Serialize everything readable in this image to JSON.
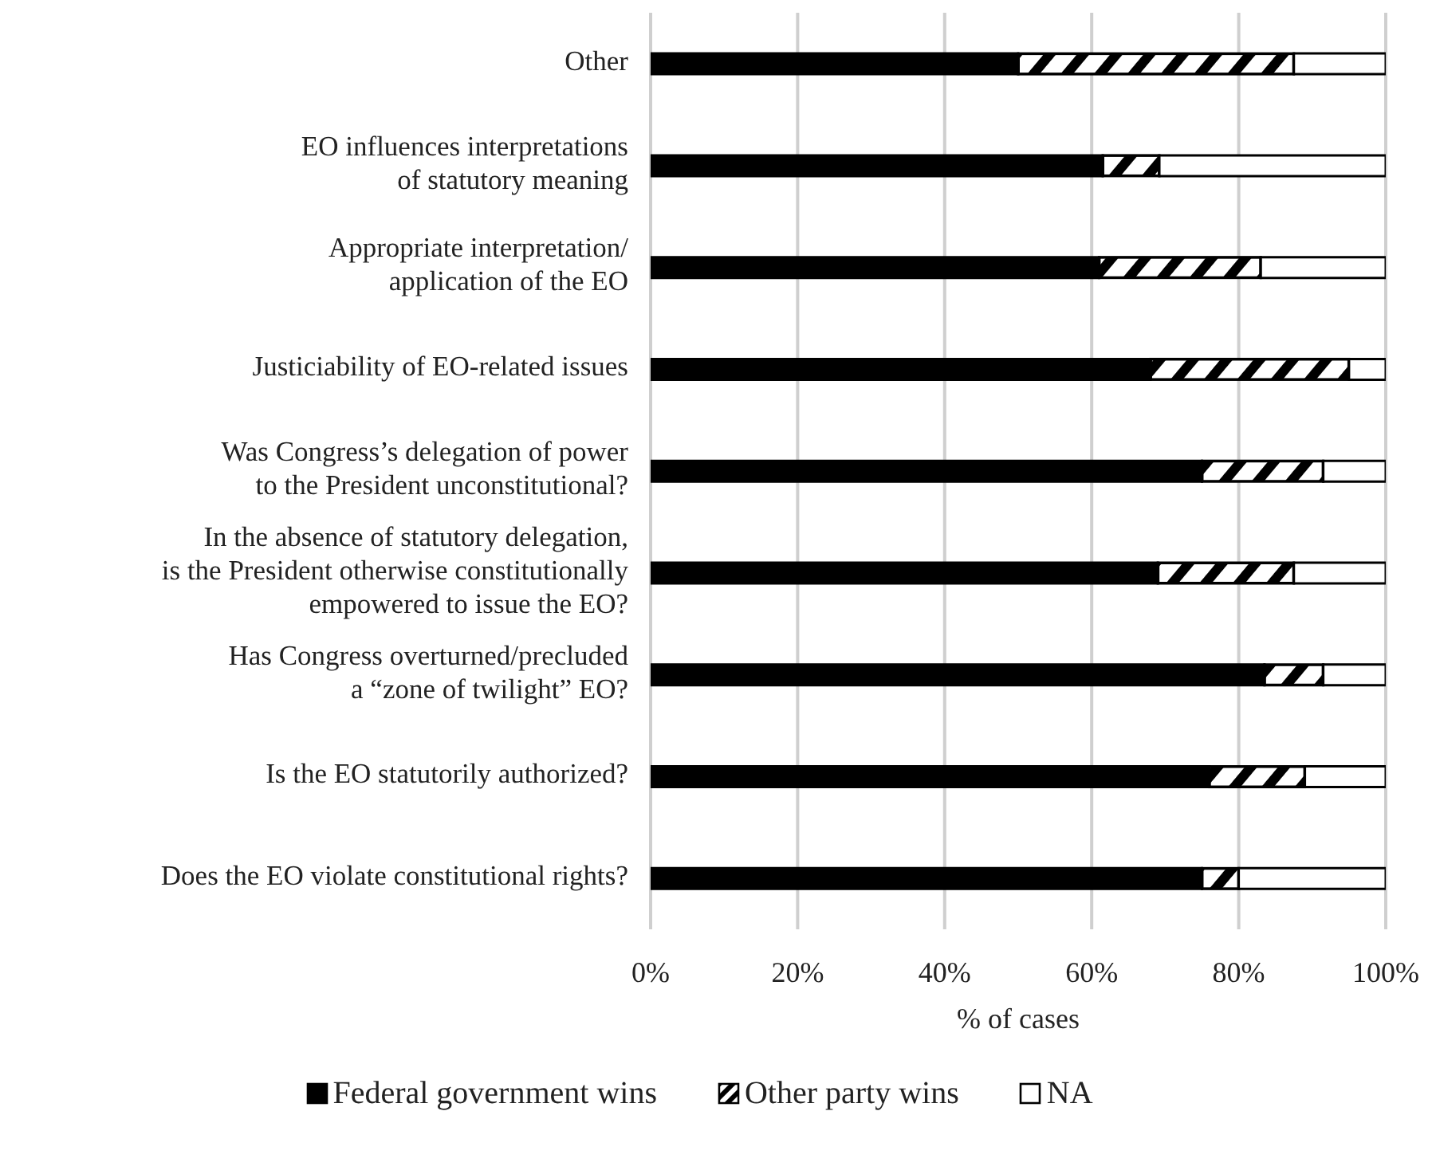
{
  "chart_data": {
    "type": "bar",
    "orientation": "horizontal",
    "stacked": true,
    "xlabel": "% of cases",
    "categories": [
      "Other",
      "EO influences interpretations\nof statutory meaning",
      "Appropriate interpretation/\napplication of the EO",
      "Justiciability of EO-related issues",
      "Was Congress’s delegation of power\nto the President unconstitutional?",
      "In the absence of statutory delegation,\nis the President otherwise constitutionally\nempowered to issue the EO?",
      "Has Congress overturned/precluded\na “zone of twilight” EO?",
      "Is the EO statutorily authorized?",
      "Does the EO violate constitutional rights?"
    ],
    "series": [
      {
        "name": "Federal government wins",
        "color": "#000000",
        "values": [
          50,
          61.5,
          61,
          68,
          75,
          69,
          83.5,
          76,
          75
        ]
      },
      {
        "name": "Other party wins",
        "color": "#000000",
        "values": [
          37.5,
          7.7,
          22,
          27,
          16.5,
          18.5,
          8,
          13,
          5
        ]
      },
      {
        "name": "NA",
        "color": "#ffffff",
        "values": [
          12.5,
          30.8,
          17,
          5,
          8.5,
          12.5,
          8.5,
          11,
          20
        ]
      }
    ],
    "xlim": [
      0,
      100
    ],
    "xticks": [
      {
        "value": 0,
        "label": "0%"
      },
      {
        "value": 20,
        "label": "20%"
      },
      {
        "value": 40,
        "label": "40%"
      },
      {
        "value": 60,
        "label": "60%"
      },
      {
        "value": 80,
        "label": "80%"
      },
      {
        "value": 100,
        "label": "100%"
      }
    ],
    "grid": "x",
    "legend": "bottom"
  }
}
